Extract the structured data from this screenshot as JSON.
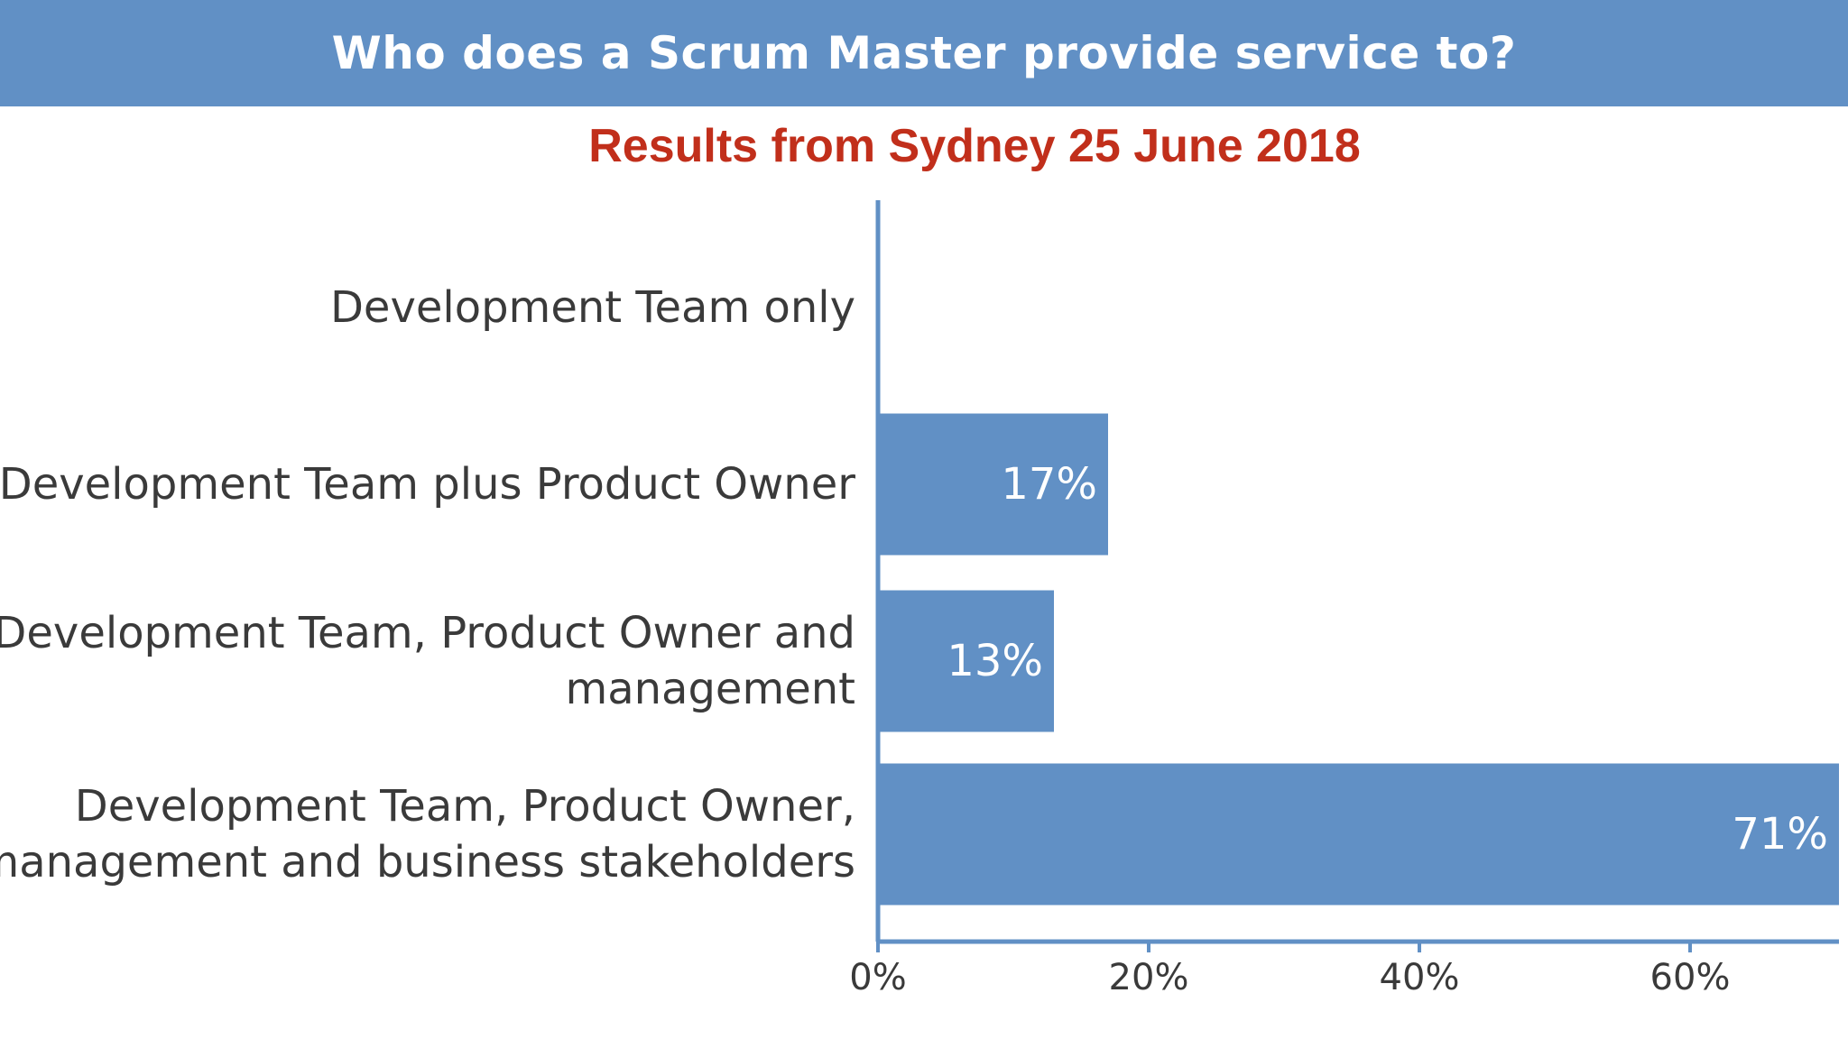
{
  "header": {
    "title": "Who does a Scrum Master provide service to?",
    "subtitle": "Results from Sydney 25 June 2018"
  },
  "colors": {
    "banner": "#6190c5",
    "bar": "#6190c5",
    "axis": "#6190c5",
    "subtitle": "#c12f1b",
    "label_text": "#3a3a3a"
  },
  "chart_data": {
    "type": "bar",
    "orientation": "horizontal",
    "title": "Who does a Scrum Master provide service to?",
    "subtitle": "Results from Sydney 25 June 2018",
    "categories": [
      [
        "Development Team only"
      ],
      [
        "Development Team plus Product Owner"
      ],
      [
        "Development Team, Product Owner and",
        "management"
      ],
      [
        "Development Team, Product Owner,",
        "management and business stakeholders"
      ]
    ],
    "values": [
      0,
      17,
      13,
      71
    ],
    "data_labels": [
      "",
      "17%",
      "13%",
      "71%"
    ],
    "x_ticks": [
      0,
      20,
      40,
      60
    ],
    "x_tick_labels": [
      "0%",
      "20%",
      "40%",
      "60%"
    ],
    "xlim": [
      0,
      71
    ],
    "xlabel": "",
    "ylabel": "",
    "grid": false,
    "legend": "none"
  }
}
